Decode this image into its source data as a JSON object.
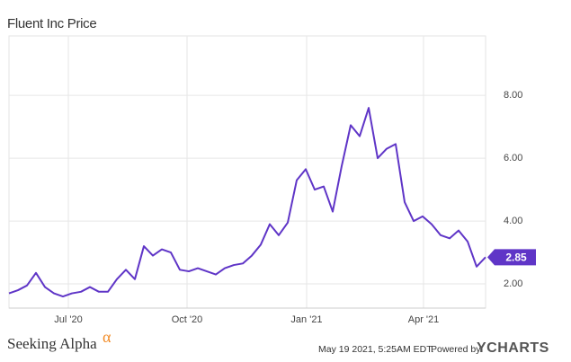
{
  "chart_data": {
    "type": "line",
    "title": "Fluent Inc Price",
    "color": "#5f35c7",
    "values": [
      1.7,
      1.8,
      1.95,
      2.35,
      1.9,
      1.7,
      1.6,
      1.7,
      1.75,
      1.9,
      1.75,
      1.75,
      2.15,
      2.45,
      2.15,
      3.2,
      2.9,
      3.1,
      3.0,
      2.45,
      2.4,
      2.5,
      2.4,
      2.3,
      2.5,
      2.6,
      2.65,
      2.9,
      3.25,
      3.9,
      3.55,
      3.95,
      5.3,
      5.65,
      5.0,
      5.1,
      4.3,
      5.75,
      7.05,
      6.7,
      7.6,
      6.0,
      6.3,
      6.45,
      4.6,
      4.0,
      4.15,
      3.9,
      3.55,
      3.45,
      3.7,
      3.35,
      2.55,
      2.85
    ],
    "xlim": [
      0,
      53
    ],
    "xticks": [
      {
        "value": 6.6,
        "label": "Jul '20"
      },
      {
        "value": 19.8,
        "label": "Oct '20"
      },
      {
        "value": 33.1,
        "label": "Jan '21"
      },
      {
        "value": 46.1,
        "label": "Apr '21"
      }
    ],
    "ylim": [
      1.23,
      9.89
    ],
    "yticks": [
      {
        "value": 2,
        "label": "2.00"
      },
      {
        "value": 4,
        "label": "4.00"
      },
      {
        "value": 6,
        "label": "6.00"
      },
      {
        "value": 8,
        "label": "8.00"
      }
    ],
    "grid": true,
    "source": "Seeking Alpha",
    "source_mark": "α",
    "timestamp": "May 19 2021, 5:25AM EDT.",
    "powered_by": "Powered by",
    "brand": "YCHARTS"
  }
}
